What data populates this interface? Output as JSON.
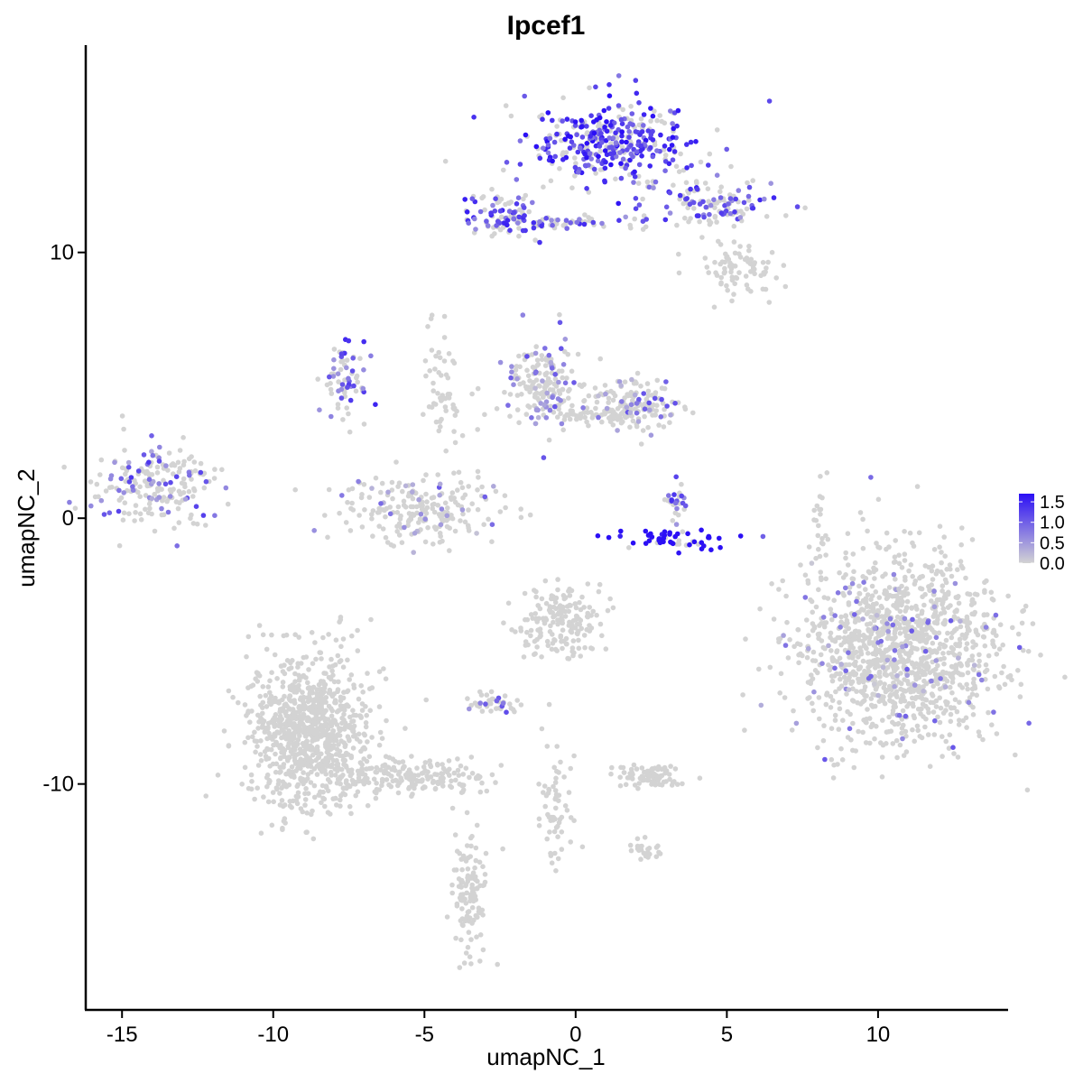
{
  "chart_data": {
    "type": "scatter",
    "title": "Ipcef1",
    "xlabel": "umapNC_1",
    "ylabel": "umapNC_2",
    "xlim": [
      -16.2,
      14.3
    ],
    "ylim": [
      -18.5,
      17.8
    ],
    "x_ticks": [
      "-15",
      "-10",
      "-5",
      "0",
      "5",
      "10"
    ],
    "y_ticks": [
      "-10",
      "0",
      "10"
    ],
    "grid": false,
    "legend": {
      "placement": "right",
      "type": "colorbar",
      "labels": [
        "1.5",
        "1.0",
        "0.5",
        "0.0"
      ],
      "range": [
        0,
        1.7
      ],
      "low_color": "#d3d3d3",
      "high_color": "#2b0ff5"
    },
    "point_default_color": "#d3d3d3",
    "clusters": [
      {
        "id": "top",
        "cx": 1.2,
        "cy": 14.1,
        "rx": 1.9,
        "ry": 1.1,
        "n": 380,
        "expr": 0.45
      },
      {
        "id": "top-right-tail",
        "cx": 4.4,
        "cy": 11.8,
        "rx": 1.6,
        "ry": 0.6,
        "n": 120,
        "expr": 0.3
      },
      {
        "id": "top-right-lower",
        "cx": 5.4,
        "cy": 9.4,
        "rx": 1.0,
        "ry": 0.6,
        "n": 80,
        "expr": 0.0
      },
      {
        "id": "top-left-arm",
        "cx": -2.5,
        "cy": 11.4,
        "rx": 0.8,
        "ry": 0.6,
        "n": 90,
        "expr": 0.35
      },
      {
        "id": "top-bridge",
        "cx": 0.0,
        "cy": 11.1,
        "rx": 1.5,
        "ry": 0.2,
        "n": 60,
        "expr": 0.3
      },
      {
        "id": "left-edge",
        "cx": -13.8,
        "cy": 1.2,
        "rx": 1.3,
        "ry": 1.1,
        "n": 200,
        "expr": 0.2
      },
      {
        "id": "hook",
        "cx": -7.6,
        "cy": 5.2,
        "rx": 0.5,
        "ry": 1.1,
        "n": 70,
        "expr": 0.3
      },
      {
        "id": "mid-ring",
        "cx": -5.2,
        "cy": 0.3,
        "rx": 1.8,
        "ry": 0.9,
        "n": 220,
        "expr": 0.08
      },
      {
        "id": "mid-upper",
        "cx": -1.1,
        "cy": 5.2,
        "rx": 0.8,
        "ry": 1.2,
        "n": 160,
        "expr": 0.12
      },
      {
        "id": "mid-bridge",
        "cx": 0.9,
        "cy": 4.1,
        "rx": 1.8,
        "ry": 0.5,
        "n": 120,
        "expr": 0.08
      },
      {
        "id": "mid-right",
        "cx": 2.1,
        "cy": 4.2,
        "rx": 0.9,
        "ry": 0.7,
        "n": 100,
        "expr": 0.15
      },
      {
        "id": "crescent",
        "cx": 3.3,
        "cy": -0.8,
        "rx": 1.2,
        "ry": 0.25,
        "n": 55,
        "expr": 0.9
      },
      {
        "id": "crescent-upper",
        "cx": 3.3,
        "cy": 0.7,
        "rx": 0.3,
        "ry": 0.6,
        "n": 25,
        "expr": 0.3
      },
      {
        "id": "right-big",
        "cx": 10.7,
        "cy": -5.0,
        "rx": 2.3,
        "ry": 2.4,
        "n": 1300,
        "expr": 0.05
      },
      {
        "id": "center-lower",
        "cx": -0.5,
        "cy": -3.9,
        "rx": 0.9,
        "ry": 0.9,
        "n": 180,
        "expr": 0.0
      },
      {
        "id": "left-lower",
        "cx": -8.8,
        "cy": -8.0,
        "rx": 1.4,
        "ry": 2.0,
        "n": 900,
        "expr": 0.0
      },
      {
        "id": "left-lower-tail",
        "cx": -5.5,
        "cy": -9.8,
        "rx": 1.8,
        "ry": 0.5,
        "n": 200,
        "expr": 0.0
      },
      {
        "id": "bottom-streak",
        "cx": -3.5,
        "cy": -14.0,
        "rx": 0.4,
        "ry": 1.7,
        "n": 120,
        "expr": 0.0
      },
      {
        "id": "small-lower-right",
        "cx": 2.5,
        "cy": -9.7,
        "rx": 0.8,
        "ry": 0.3,
        "n": 80,
        "expr": 0.0
      },
      {
        "id": "small-mid",
        "cx": -2.6,
        "cy": -6.9,
        "rx": 0.5,
        "ry": 0.3,
        "n": 40,
        "expr": 0.1
      },
      {
        "id": "small-bottom",
        "cx": 2.3,
        "cy": -12.5,
        "rx": 0.3,
        "ry": 0.3,
        "n": 25,
        "expr": 0.0
      },
      {
        "id": "upper-stream",
        "cx": -4.4,
        "cy": 5.0,
        "rx": 0.6,
        "ry": 2.0,
        "n": 60,
        "expr": 0.0
      },
      {
        "id": "vertical-streak-right",
        "cx": 8.1,
        "cy": -0.6,
        "rx": 0.15,
        "ry": 1.6,
        "n": 20,
        "expr": 0.0
      },
      {
        "id": "vertical-streak-lower",
        "cx": -0.6,
        "cy": -10.7,
        "rx": 0.4,
        "ry": 1.7,
        "n": 60,
        "expr": 0.0
      }
    ]
  }
}
